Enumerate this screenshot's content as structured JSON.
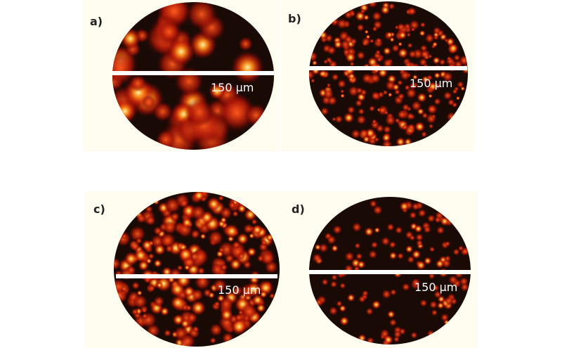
{
  "panels": [
    {
      "label": "a)",
      "scale_bar": "150 µm"
    },
    {
      "label": "b)",
      "scale_bar": "150 µm"
    },
    {
      "label": "c)",
      "scale_bar": "150 µm"
    },
    {
      "label": "d)",
      "scale_bar": "150 µm"
    }
  ]
}
